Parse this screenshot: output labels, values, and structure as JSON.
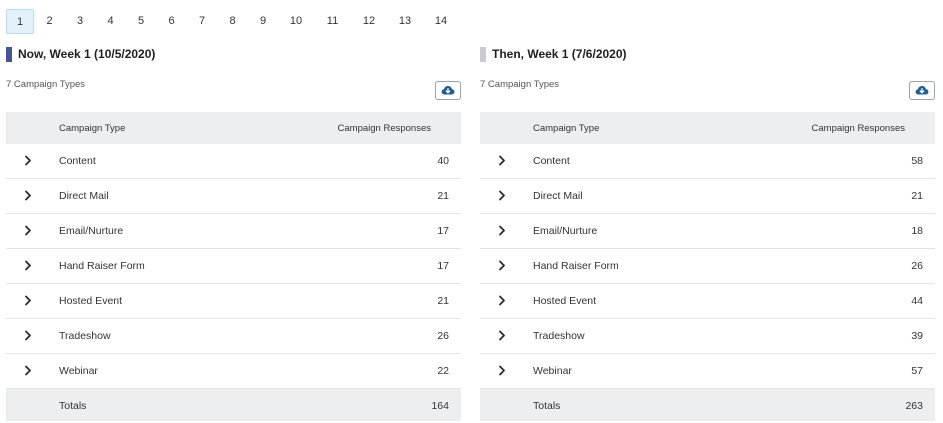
{
  "pagination": {
    "pages": [
      "1",
      "2",
      "3",
      "4",
      "5",
      "6",
      "7",
      "8",
      "9",
      "10",
      "11",
      "12",
      "13",
      "14"
    ],
    "active": "1"
  },
  "panels": [
    {
      "title": "Now, Week 1 (10/5/2020)",
      "accent_color": "#4a5494",
      "count_text": "7 Campaign Types",
      "download_icon": "cloud-download-icon",
      "columns": [
        "Campaign Type",
        "Campaign Responses"
      ],
      "rows": [
        {
          "type": "Content",
          "responses": "40"
        },
        {
          "type": "Direct Mail",
          "responses": "21"
        },
        {
          "type": "Email/Nurture",
          "responses": "17"
        },
        {
          "type": "Hand Raiser Form",
          "responses": "17"
        },
        {
          "type": "Hosted Event",
          "responses": "21"
        },
        {
          "type": "Tradeshow",
          "responses": "26"
        },
        {
          "type": "Webinar",
          "responses": "22"
        }
      ],
      "totals_label": "Totals",
      "totals_value": "164"
    },
    {
      "title": "Then, Week 1 (7/6/2020)",
      "accent_color": "#c8cbcf",
      "count_text": "7 Campaign Types",
      "download_icon": "cloud-download-icon",
      "columns": [
        "Campaign Type",
        "Campaign Responses"
      ],
      "rows": [
        {
          "type": "Content",
          "responses": "58"
        },
        {
          "type": "Direct Mail",
          "responses": "21"
        },
        {
          "type": "Email/Nurture",
          "responses": "18"
        },
        {
          "type": "Hand Raiser Form",
          "responses": "26"
        },
        {
          "type": "Hosted Event",
          "responses": "44"
        },
        {
          "type": "Tradeshow",
          "responses": "39"
        },
        {
          "type": "Webinar",
          "responses": "57"
        }
      ],
      "totals_label": "Totals",
      "totals_value": "263"
    }
  ]
}
